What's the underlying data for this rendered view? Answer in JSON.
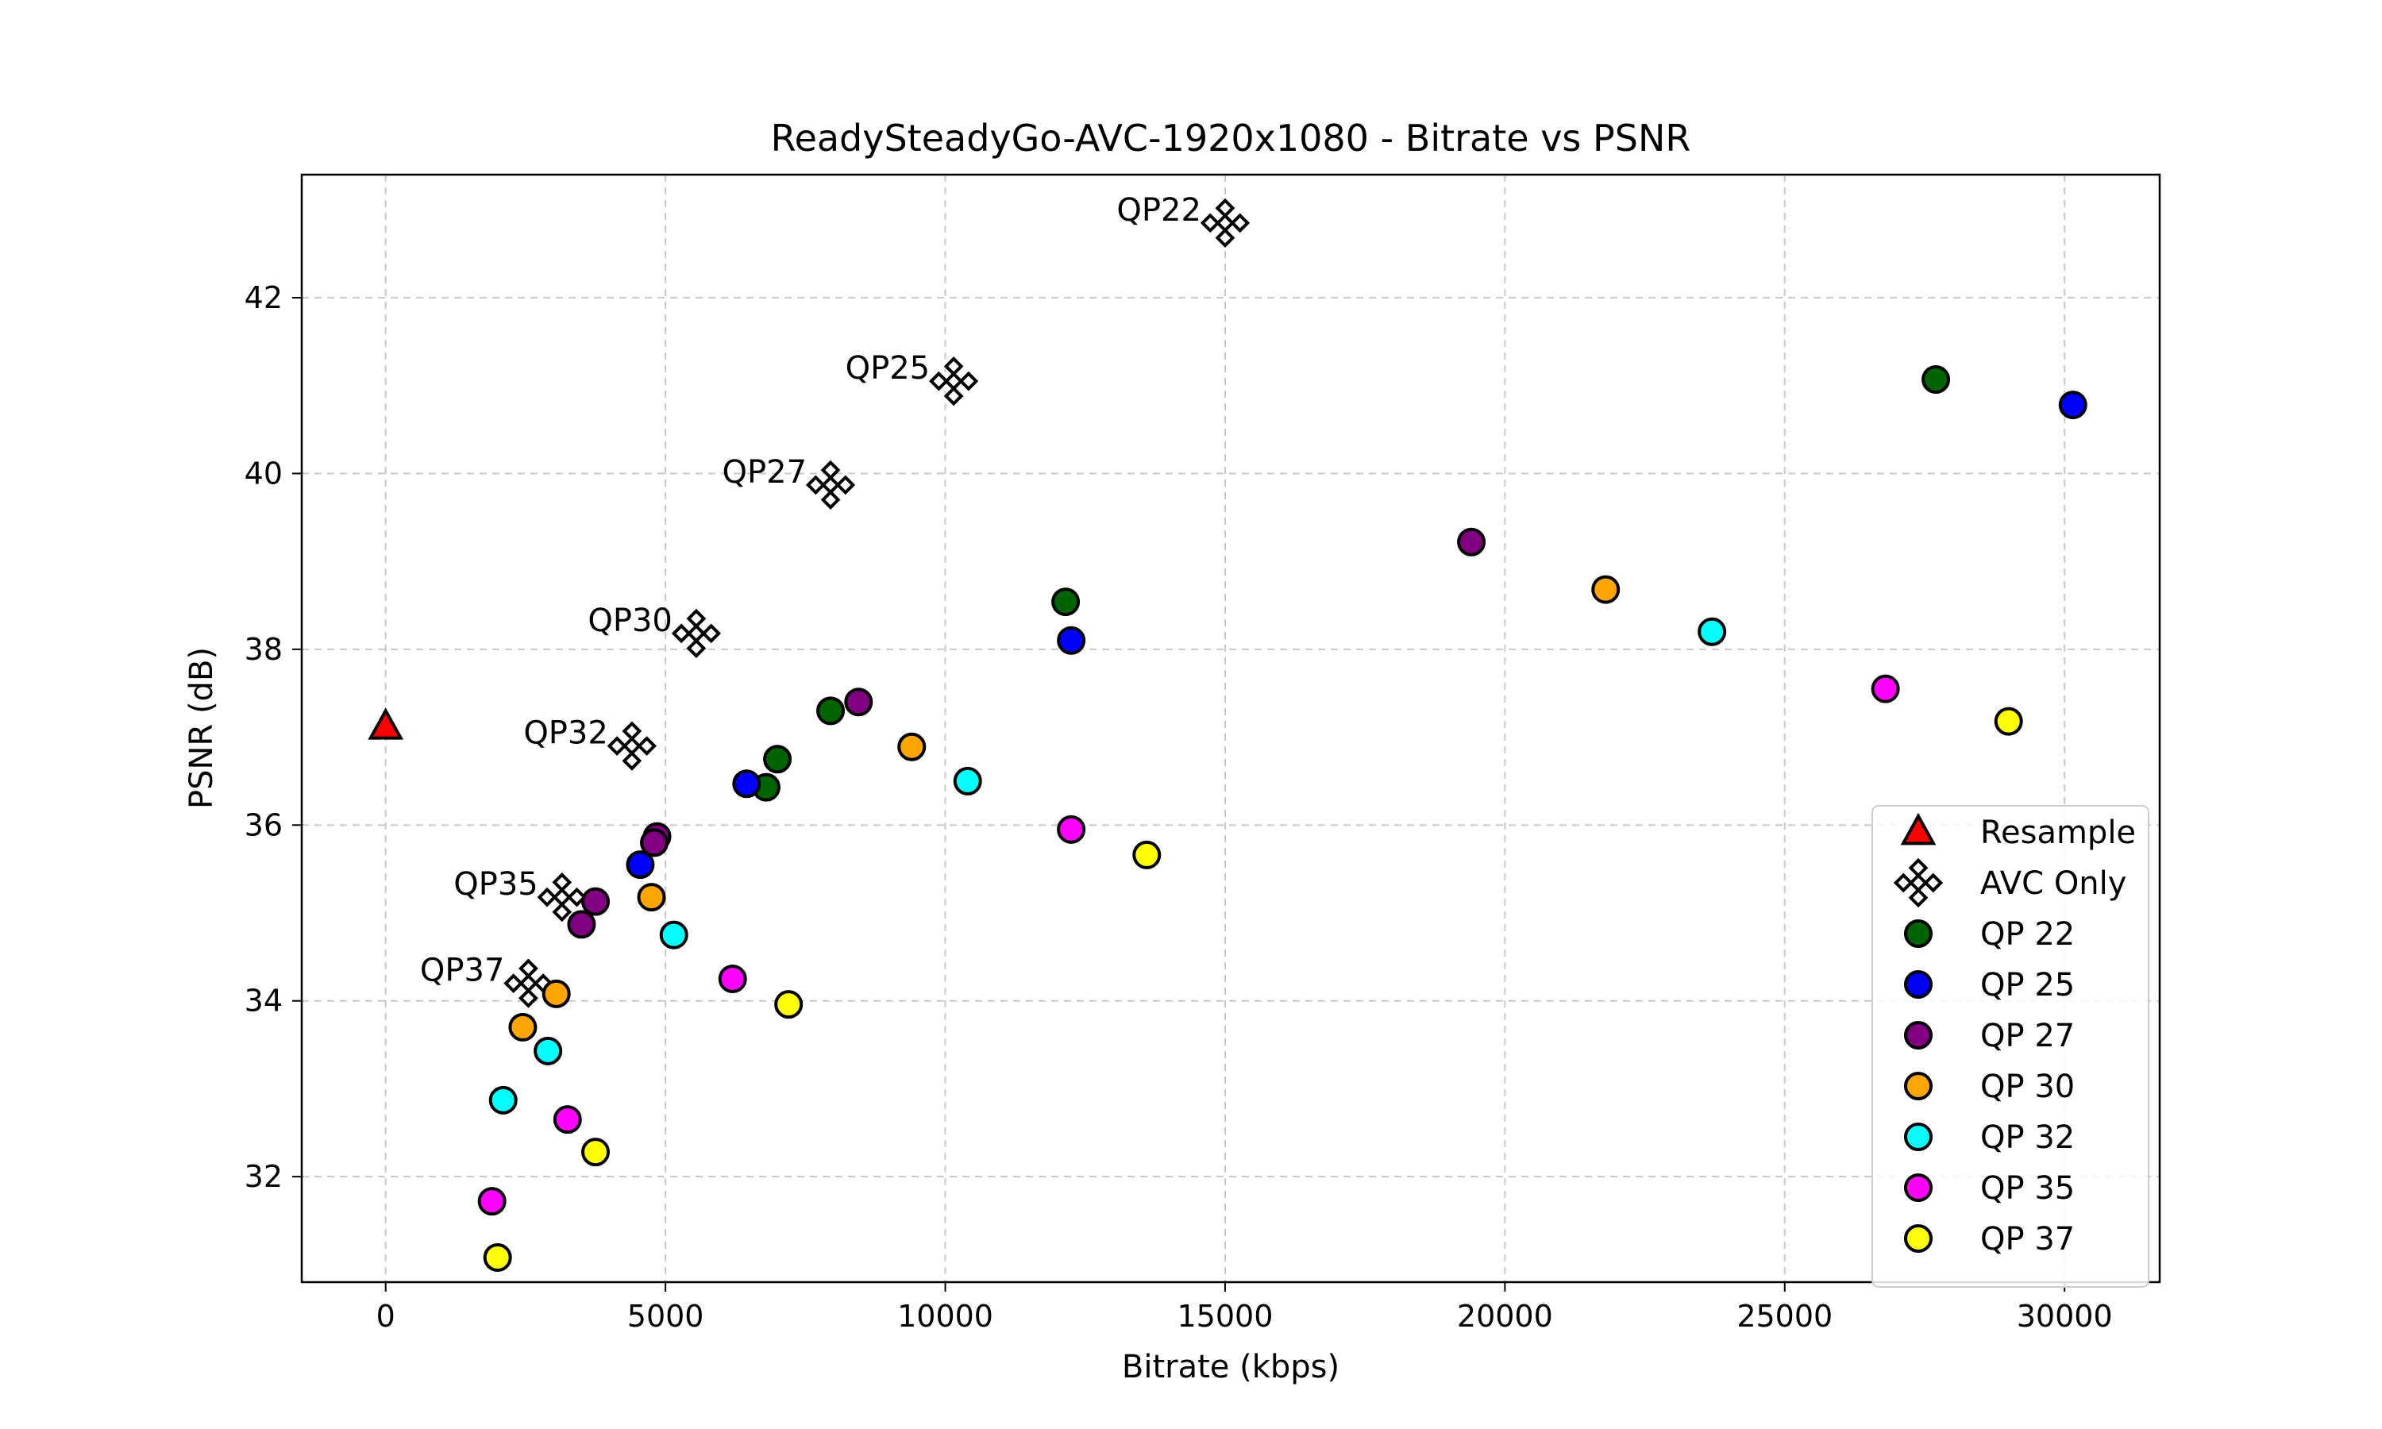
{
  "chart_data": {
    "type": "scatter",
    "title": "ReadySteadyGo-AVC-1920x1080 - Bitrate vs PSNR",
    "xlabel": "Bitrate (kbps)",
    "ylabel": "PSNR (dB)",
    "xlim": [
      -1500,
      31700
    ],
    "ylim": [
      30.8,
      43.4
    ],
    "xticks": [
      0,
      5000,
      10000,
      15000,
      20000,
      25000,
      30000
    ],
    "xtick_labels": [
      "0",
      "5000",
      "10000",
      "15000",
      "20000",
      "25000",
      "30000"
    ],
    "yticks": [
      32,
      34,
      36,
      38,
      40,
      42
    ],
    "ytick_labels": [
      "32",
      "34",
      "36",
      "38",
      "40",
      "42"
    ],
    "grid": true,
    "legend_position": "lower-right",
    "series": [
      {
        "name": "Resample",
        "marker": "triangle",
        "color": "#ff0000",
        "points": [
          [
            0,
            37.12
          ]
        ]
      },
      {
        "name": "AVC Only",
        "marker": "x",
        "color": "#ffffff",
        "points": [
          [
            15000,
            42.85
          ],
          [
            10150,
            41.05
          ],
          [
            7950,
            39.87
          ],
          [
            5550,
            38.18
          ],
          [
            4400,
            36.9
          ],
          [
            3150,
            35.18
          ],
          [
            2550,
            34.2
          ]
        ],
        "labels": [
          "QP22",
          "QP25",
          "QP27",
          "QP30",
          "QP32",
          "QP35",
          "QP37"
        ]
      },
      {
        "name": "QP 22",
        "marker": "circle",
        "color": "#006400",
        "points": [
          [
            27700,
            41.07
          ],
          [
            12150,
            38.54
          ],
          [
            7950,
            37.3
          ],
          [
            7000,
            36.75
          ],
          [
            6800,
            36.43
          ]
        ]
      },
      {
        "name": "QP 25",
        "marker": "circle",
        "color": "#0000ff",
        "points": [
          [
            30150,
            40.78
          ],
          [
            12250,
            38.1
          ],
          [
            6450,
            36.47
          ],
          [
            4550,
            35.55
          ]
        ]
      },
      {
        "name": "QP 27",
        "marker": "circle",
        "color": "#800080",
        "points": [
          [
            19400,
            39.22
          ],
          [
            8450,
            37.4
          ],
          [
            4850,
            35.87
          ],
          [
            4800,
            35.8
          ],
          [
            3750,
            35.13
          ],
          [
            3500,
            34.87
          ]
        ]
      },
      {
        "name": "QP 30",
        "marker": "circle",
        "color": "#ffa500",
        "points": [
          [
            21800,
            38.68
          ],
          [
            9400,
            36.89
          ],
          [
            4750,
            35.18
          ],
          [
            3050,
            34.08
          ],
          [
            2450,
            33.7
          ]
        ]
      },
      {
        "name": "QP 32",
        "marker": "circle",
        "color": "#00ffff",
        "points": [
          [
            23700,
            38.2
          ],
          [
            10400,
            36.5
          ],
          [
            5150,
            34.75
          ],
          [
            2900,
            33.43
          ],
          [
            2100,
            32.87
          ]
        ]
      },
      {
        "name": "QP 35",
        "marker": "circle",
        "color": "#ff00ff",
        "points": [
          [
            26800,
            37.55
          ],
          [
            12250,
            35.95
          ],
          [
            6200,
            34.25
          ],
          [
            3250,
            32.65
          ],
          [
            1900,
            31.72
          ]
        ]
      },
      {
        "name": "QP 37",
        "marker": "circle",
        "color": "#ffff00",
        "points": [
          [
            29000,
            37.18
          ],
          [
            13600,
            35.66
          ],
          [
            7200,
            33.96
          ],
          [
            3750,
            32.28
          ],
          [
            2000,
            31.08
          ]
        ]
      }
    ]
  }
}
